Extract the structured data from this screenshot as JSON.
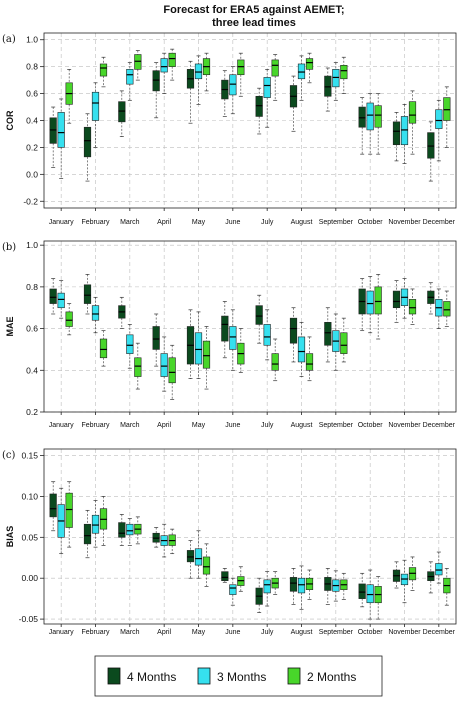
{
  "figure": {
    "title_line1": "Forecast for ERA5 against AEMET;",
    "title_line2": "three lead times"
  },
  "legend": {
    "items": [
      {
        "label": "4 Months",
        "color": "#0b4a1e"
      },
      {
        "label": "3 Months",
        "color": "#36e0ef"
      },
      {
        "label": "2 Months",
        "color": "#48d62a"
      }
    ]
  },
  "chart_data": [
    {
      "panel": "(a)",
      "type": "boxplot",
      "ylabel": "COR",
      "ylim": [
        -0.25,
        1.05
      ],
      "yticks": [
        -0.2,
        0.0,
        0.2,
        0.4,
        0.6,
        0.8,
        1.0
      ],
      "grid": true,
      "categories": [
        "January",
        "February",
        "March",
        "April",
        "May",
        "June",
        "July",
        "August",
        "September",
        "October",
        "November",
        "December"
      ],
      "series": [
        {
          "name": "4 Months",
          "boxes": [
            [
              0.05,
              0.23,
              0.33,
              0.42,
              0.5
            ],
            [
              -0.05,
              0.13,
              0.25,
              0.35,
              0.45
            ],
            [
              0.28,
              0.39,
              0.47,
              0.54,
              0.62
            ],
            [
              0.42,
              0.62,
              0.7,
              0.77,
              0.83
            ],
            [
              0.38,
              0.64,
              0.71,
              0.78,
              0.84
            ],
            [
              0.43,
              0.56,
              0.63,
              0.7,
              0.77
            ],
            [
              0.3,
              0.43,
              0.51,
              0.58,
              0.64
            ],
            [
              0.32,
              0.5,
              0.58,
              0.66,
              0.73
            ],
            [
              0.47,
              0.58,
              0.65,
              0.73,
              0.79
            ],
            [
              0.15,
              0.35,
              0.42,
              0.5,
              0.57
            ],
            [
              0.1,
              0.22,
              0.32,
              0.39,
              0.46
            ],
            [
              -0.05,
              0.12,
              0.21,
              0.31,
              0.39
            ]
          ]
        },
        {
          "name": "3 Months",
          "boxes": [
            [
              -0.03,
              0.2,
              0.31,
              0.46,
              0.56
            ],
            [
              0.2,
              0.4,
              0.53,
              0.61,
              0.68
            ],
            [
              0.55,
              0.67,
              0.74,
              0.78,
              0.83
            ],
            [
              0.6,
              0.76,
              0.8,
              0.86,
              0.9
            ],
            [
              0.52,
              0.71,
              0.76,
              0.82,
              0.88
            ],
            [
              0.45,
              0.59,
              0.67,
              0.74,
              0.8
            ],
            [
              0.35,
              0.57,
              0.66,
              0.72,
              0.78
            ],
            [
              0.55,
              0.71,
              0.76,
              0.82,
              0.88
            ],
            [
              0.55,
              0.65,
              0.72,
              0.78,
              0.83
            ],
            [
              0.15,
              0.33,
              0.44,
              0.53,
              0.6
            ],
            [
              0.08,
              0.22,
              0.33,
              0.43,
              0.52
            ],
            [
              0.1,
              0.34,
              0.4,
              0.48,
              0.55
            ]
          ]
        },
        {
          "name": "2 Months",
          "boxes": [
            [
              0.38,
              0.52,
              0.6,
              0.68,
              0.78
            ],
            [
              0.65,
              0.73,
              0.79,
              0.82,
              0.87
            ],
            [
              0.7,
              0.78,
              0.84,
              0.89,
              0.92
            ],
            [
              0.7,
              0.8,
              0.86,
              0.9,
              0.93
            ],
            [
              0.62,
              0.74,
              0.8,
              0.86,
              0.9
            ],
            [
              0.58,
              0.74,
              0.8,
              0.85,
              0.9
            ],
            [
              0.55,
              0.73,
              0.81,
              0.85,
              0.89
            ],
            [
              0.68,
              0.78,
              0.83,
              0.86,
              0.9
            ],
            [
              0.6,
              0.71,
              0.77,
              0.81,
              0.87
            ],
            [
              0.15,
              0.35,
              0.44,
              0.51,
              0.6
            ],
            [
              0.15,
              0.38,
              0.44,
              0.54,
              0.62
            ],
            [
              0.2,
              0.4,
              0.48,
              0.57,
              0.65
            ]
          ]
        }
      ]
    },
    {
      "panel": "(b)",
      "type": "boxplot",
      "ylabel": "MAE",
      "ylim": [
        0.2,
        1.02
      ],
      "yticks": [
        0.2,
        0.4,
        0.6,
        0.8,
        1.0
      ],
      "grid": true,
      "categories": [
        "January",
        "February",
        "March",
        "April",
        "May",
        "June",
        "July",
        "August",
        "September",
        "October",
        "November",
        "December"
      ],
      "series": [
        {
          "name": "4 Months",
          "boxes": [
            [
              0.67,
              0.72,
              0.75,
              0.79,
              0.84
            ],
            [
              0.67,
              0.72,
              0.76,
              0.81,
              0.86
            ],
            [
              0.6,
              0.65,
              0.68,
              0.71,
              0.75
            ],
            [
              0.42,
              0.5,
              0.55,
              0.61,
              0.67
            ],
            [
              0.36,
              0.43,
              0.52,
              0.61,
              0.69
            ],
            [
              0.46,
              0.54,
              0.62,
              0.66,
              0.73
            ],
            [
              0.53,
              0.62,
              0.66,
              0.71,
              0.76
            ],
            [
              0.44,
              0.53,
              0.6,
              0.65,
              0.7
            ],
            [
              0.44,
              0.52,
              0.58,
              0.63,
              0.7
            ],
            [
              0.59,
              0.67,
              0.73,
              0.79,
              0.84
            ],
            [
              0.63,
              0.7,
              0.73,
              0.78,
              0.83
            ],
            [
              0.67,
              0.72,
              0.75,
              0.78,
              0.82
            ]
          ]
        },
        {
          "name": "3 Months",
          "boxes": [
            [
              0.65,
              0.7,
              0.74,
              0.77,
              0.83
            ],
            [
              0.58,
              0.64,
              0.67,
              0.71,
              0.75
            ],
            [
              0.41,
              0.48,
              0.52,
              0.57,
              0.62
            ],
            [
              0.3,
              0.37,
              0.42,
              0.48,
              0.56
            ],
            [
              0.36,
              0.43,
              0.5,
              0.58,
              0.68
            ],
            [
              0.4,
              0.5,
              0.56,
              0.61,
              0.69
            ],
            [
              0.45,
              0.52,
              0.56,
              0.62,
              0.69
            ],
            [
              0.37,
              0.44,
              0.49,
              0.56,
              0.63
            ],
            [
              0.4,
              0.49,
              0.54,
              0.59,
              0.67
            ],
            [
              0.58,
              0.67,
              0.72,
              0.78,
              0.85
            ],
            [
              0.65,
              0.71,
              0.75,
              0.79,
              0.84
            ],
            [
              0.6,
              0.66,
              0.7,
              0.74,
              0.79
            ]
          ]
        },
        {
          "name": "2 Months",
          "boxes": [
            [
              0.57,
              0.61,
              0.64,
              0.68,
              0.72
            ],
            [
              0.42,
              0.46,
              0.5,
              0.55,
              0.59
            ],
            [
              0.31,
              0.37,
              0.42,
              0.46,
              0.53
            ],
            [
              0.26,
              0.34,
              0.39,
              0.46,
              0.52
            ],
            [
              0.31,
              0.41,
              0.47,
              0.54,
              0.61
            ],
            [
              0.39,
              0.43,
              0.48,
              0.53,
              0.6
            ],
            [
              0.35,
              0.4,
              0.43,
              0.48,
              0.55
            ],
            [
              0.35,
              0.4,
              0.43,
              0.48,
              0.56
            ],
            [
              0.44,
              0.48,
              0.52,
              0.58,
              0.65
            ],
            [
              0.55,
              0.67,
              0.73,
              0.8,
              0.86
            ],
            [
              0.62,
              0.67,
              0.7,
              0.74,
              0.79
            ],
            [
              0.61,
              0.66,
              0.69,
              0.73,
              0.78
            ]
          ]
        }
      ]
    },
    {
      "panel": "(c)",
      "type": "boxplot",
      "ylabel": "BIAS",
      "ylim": [
        -0.056,
        0.158
      ],
      "yticks": [
        -0.05,
        0.0,
        0.05,
        0.1,
        0.15
      ],
      "grid": true,
      "categories": [
        "January",
        "February",
        "March",
        "April",
        "May",
        "June",
        "July",
        "August",
        "September",
        "October",
        "November",
        "December"
      ],
      "series": [
        {
          "name": "4 Months",
          "boxes": [
            [
              0.058,
              0.075,
              0.085,
              0.103,
              0.118
            ],
            [
              0.025,
              0.042,
              0.052,
              0.066,
              0.083
            ],
            [
              0.04,
              0.05,
              0.055,
              0.068,
              0.078
            ],
            [
              0.038,
              0.044,
              0.049,
              0.055,
              0.062
            ],
            [
              0.0,
              0.02,
              0.026,
              0.034,
              0.046
            ],
            [
              -0.005,
              -0.003,
              0.001,
              0.008,
              0.012
            ],
            [
              -0.042,
              -0.032,
              -0.022,
              -0.012,
              0.0
            ],
            [
              -0.032,
              -0.016,
              -0.006,
              0.001,
              0.012
            ],
            [
              -0.032,
              -0.015,
              -0.007,
              0.001,
              0.012
            ],
            [
              -0.035,
              -0.025,
              -0.017,
              -0.007,
              0.006
            ],
            [
              -0.012,
              -0.004,
              0.003,
              0.01,
              0.02
            ],
            [
              -0.018,
              -0.003,
              0.002,
              0.008,
              0.02
            ]
          ]
        },
        {
          "name": "3 Months",
          "boxes": [
            [
              0.03,
              0.05,
              0.07,
              0.09,
              0.11
            ],
            [
              0.038,
              0.055,
              0.065,
              0.077,
              0.095
            ],
            [
              0.04,
              0.053,
              0.058,
              0.066,
              0.073
            ],
            [
              0.026,
              0.04,
              0.046,
              0.052,
              0.066
            ],
            [
              0.0,
              0.016,
              0.024,
              0.036,
              0.058
            ],
            [
              -0.033,
              -0.02,
              -0.012,
              -0.008,
              0.0
            ],
            [
              -0.034,
              -0.018,
              -0.008,
              -0.002,
              0.008
            ],
            [
              -0.038,
              -0.018,
              -0.008,
              0.0,
              0.015
            ],
            [
              -0.028,
              -0.016,
              -0.009,
              -0.002,
              0.009
            ],
            [
              -0.05,
              -0.03,
              -0.02,
              -0.008,
              0.01
            ],
            [
              -0.03,
              -0.008,
              -0.001,
              0.005,
              0.022
            ],
            [
              -0.006,
              0.004,
              0.01,
              0.018,
              0.032
            ]
          ]
        },
        {
          "name": "2 Months",
          "boxes": [
            [
              0.038,
              0.062,
              0.084,
              0.104,
              0.118
            ],
            [
              0.04,
              0.06,
              0.072,
              0.085,
              0.1
            ],
            [
              0.042,
              0.054,
              0.06,
              0.066,
              0.075
            ],
            [
              0.03,
              0.04,
              0.046,
              0.053,
              0.06
            ],
            [
              -0.01,
              0.005,
              0.014,
              0.026,
              0.042
            ],
            [
              -0.016,
              -0.009,
              -0.003,
              0.002,
              0.014
            ],
            [
              -0.02,
              -0.012,
              -0.006,
              0.0,
              0.008
            ],
            [
              -0.026,
              -0.014,
              -0.007,
              0.0,
              0.01
            ],
            [
              -0.026,
              -0.014,
              -0.008,
              -0.002,
              0.006
            ],
            [
              -0.05,
              -0.03,
              -0.02,
              -0.01,
              0.002
            ],
            [
              -0.015,
              -0.002,
              0.006,
              0.013,
              0.026
            ],
            [
              -0.033,
              -0.018,
              -0.009,
              0.0,
              0.012
            ]
          ]
        }
      ]
    }
  ]
}
